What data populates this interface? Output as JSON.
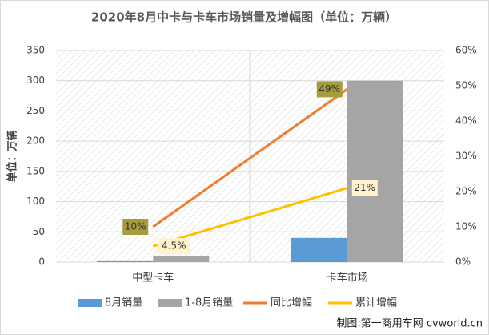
{
  "chart_data": {
    "type": "bar",
    "title": "2020年8月中卡与卡车市场销量及增幅图（单位：万辆）",
    "y_label": "单位：万辆",
    "categories": [
      "中型卡车",
      "卡车市场"
    ],
    "series": [
      {
        "name": "8月销量",
        "type": "bar",
        "color": "#5b9bd5",
        "values": [
          1.5,
          40
        ]
      },
      {
        "name": "1-8月销量",
        "type": "bar",
        "color": "#a5a5a5",
        "values": [
          10,
          300
        ]
      },
      {
        "name": "同比增幅",
        "type": "line",
        "axis": "y2",
        "color": "#ed7d31",
        "values": [
          10,
          49
        ],
        "value_labels": [
          "10%",
          "49%"
        ]
      },
      {
        "name": "累计增幅",
        "type": "line",
        "axis": "y2",
        "color": "#ffc000",
        "values": [
          4.5,
          21
        ],
        "value_labels": [
          "4.5%",
          "21%"
        ]
      }
    ],
    "ylim": [
      0,
      350
    ],
    "yticks": [
      0,
      50,
      100,
      150,
      200,
      250,
      300,
      350
    ],
    "y2lim": [
      0,
      60
    ],
    "y2ticks": [
      {
        "value": 0,
        "label": "0%"
      },
      {
        "value": 10,
        "label": "10%"
      },
      {
        "value": 20,
        "label": "20%"
      },
      {
        "value": 30,
        "label": "30%"
      },
      {
        "value": 40,
        "label": "40%"
      },
      {
        "value": 50,
        "label": "50%"
      },
      {
        "value": 60,
        "label": "60%"
      }
    ],
    "grid": true,
    "legend": "bottom",
    "source": "制图:第一商用车网 cvworld.cn"
  }
}
